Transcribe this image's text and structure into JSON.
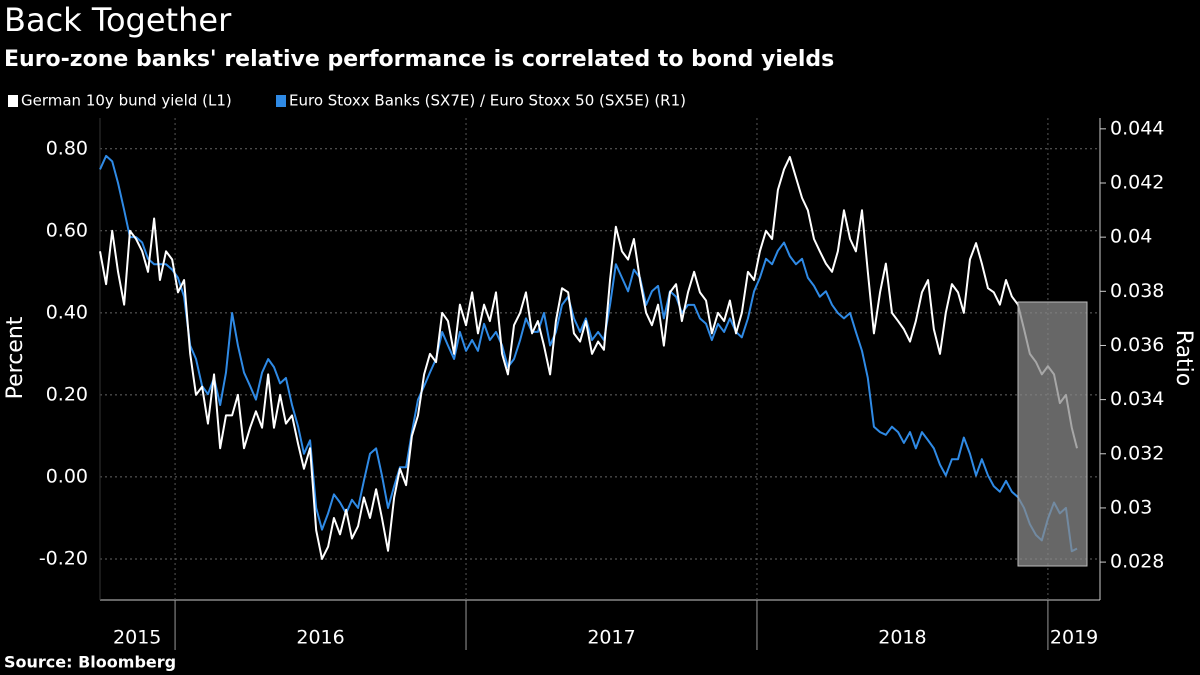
{
  "chart_data": {
    "type": "line",
    "title": "Back Together",
    "subtitle": "Euro-zone banks' relative performance is correlated to bond yields",
    "source": "Source: Bloomberg",
    "ylabel": "Percent",
    "y2label": "Ratio",
    "legend": "top-left",
    "grid": true,
    "xlim": [
      2015.742,
      2019.179
    ],
    "xticks": [
      2016,
      2017,
      2018,
      2019
    ],
    "xlabels": [
      {
        "value": 2015.87,
        "label": "2015"
      },
      {
        "value": 2016.5,
        "label": "2016"
      },
      {
        "value": 2017.5,
        "label": "2017"
      },
      {
        "value": 2018.5,
        "label": "2018"
      },
      {
        "value": 2019.09,
        "label": "2019"
      }
    ],
    "ylim": [
      -0.3,
      0.875
    ],
    "yticks": [
      {
        "value": -0.2,
        "label": "-0.20"
      },
      {
        "value": 0,
        "label": "0.00"
      },
      {
        "value": 0.2,
        "label": "0.20"
      },
      {
        "value": 0.4,
        "label": "0.40"
      },
      {
        "value": 0.6,
        "label": "0.60"
      },
      {
        "value": 0.8,
        "label": "0.80"
      }
    ],
    "y2lim": [
      0.0266,
      0.0444
    ],
    "y2ticks": [
      0.028,
      0.03,
      0.032,
      0.034,
      0.036,
      0.038,
      0.04,
      0.042,
      0.044
    ],
    "x": [
      2015.742,
      2015.763,
      2015.784,
      2015.804,
      2015.825,
      2015.845,
      2015.866,
      2015.887,
      2015.907,
      2015.928,
      2015.948,
      2015.969,
      2015.99,
      2016.01,
      2016.031,
      2016.052,
      2016.072,
      2016.093,
      2016.113,
      2016.134,
      2016.155,
      2016.175,
      2016.196,
      2016.216,
      2016.237,
      2016.258,
      2016.278,
      2016.299,
      2016.32,
      2016.34,
      2016.361,
      2016.381,
      2016.402,
      2016.423,
      2016.443,
      2016.464,
      2016.485,
      2016.505,
      2016.526,
      2016.546,
      2016.567,
      2016.588,
      2016.608,
      2016.629,
      2016.649,
      2016.67,
      2016.691,
      2016.711,
      2016.732,
      2016.753,
      2016.773,
      2016.794,
      2016.814,
      2016.835,
      2016.856,
      2016.876,
      2016.897,
      2016.918,
      2016.938,
      2016.959,
      2016.979,
      2017.0,
      2017.021,
      2017.041,
      2017.062,
      2017.082,
      2017.103,
      2017.124,
      2017.144,
      2017.165,
      2017.186,
      2017.206,
      2017.227,
      2017.247,
      2017.268,
      2017.289,
      2017.309,
      2017.33,
      2017.351,
      2017.371,
      2017.392,
      2017.412,
      2017.433,
      2017.454,
      2017.474,
      2017.495,
      2017.515,
      2017.536,
      2017.557,
      2017.577,
      2017.598,
      2017.619,
      2017.639,
      2017.66,
      2017.68,
      2017.701,
      2017.722,
      2017.742,
      2017.763,
      2017.784,
      2017.804,
      2017.825,
      2017.845,
      2017.866,
      2017.887,
      2017.907,
      2017.928,
      2017.948,
      2017.969,
      2017.99,
      2018.01,
      2018.031,
      2018.052,
      2018.072,
      2018.093,
      2018.113,
      2018.134,
      2018.155,
      2018.175,
      2018.196,
      2018.216,
      2018.237,
      2018.258,
      2018.278,
      2018.299,
      2018.32,
      2018.34,
      2018.361,
      2018.381,
      2018.402,
      2018.423,
      2018.443,
      2018.464,
      2018.485,
      2018.505,
      2018.526,
      2018.546,
      2018.567,
      2018.588,
      2018.608,
      2018.629,
      2018.649,
      2018.67,
      2018.691,
      2018.711,
      2018.732,
      2018.753,
      2018.773,
      2018.794,
      2018.814,
      2018.835,
      2018.856,
      2018.876,
      2018.897,
      2018.918,
      2018.938,
      2018.959,
      2018.979,
      2019.0,
      2019.021,
      2019.041,
      2019.062,
      2019.082,
      2019.1
    ],
    "series": [
      {
        "name": "German 10y bund yield (L1)",
        "color": "#ffffff",
        "axis": "y",
        "values": [
          0.55,
          0.47,
          0.6,
          0.5,
          0.42,
          0.6,
          0.58,
          0.55,
          0.5,
          0.63,
          0.48,
          0.55,
          0.53,
          0.45,
          0.48,
          0.3,
          0.2,
          0.22,
          0.13,
          0.25,
          0.07,
          0.15,
          0.15,
          0.2,
          0.07,
          0.12,
          0.16,
          0.12,
          0.25,
          0.12,
          0.2,
          0.13,
          0.15,
          0.08,
          0.02,
          0.07,
          -0.13,
          -0.2,
          -0.17,
          -0.1,
          -0.14,
          -0.08,
          -0.15,
          -0.12,
          -0.05,
          -0.1,
          -0.03,
          -0.1,
          -0.18,
          -0.05,
          0.02,
          -0.02,
          0.1,
          0.15,
          0.25,
          0.3,
          0.28,
          0.4,
          0.38,
          0.3,
          0.42,
          0.37,
          0.45,
          0.35,
          0.42,
          0.38,
          0.45,
          0.3,
          0.25,
          0.37,
          0.4,
          0.45,
          0.35,
          0.38,
          0.32,
          0.25,
          0.38,
          0.46,
          0.45,
          0.35,
          0.33,
          0.38,
          0.3,
          0.33,
          0.31,
          0.48,
          0.61,
          0.55,
          0.53,
          0.58,
          0.48,
          0.4,
          0.37,
          0.42,
          0.32,
          0.45,
          0.47,
          0.38,
          0.45,
          0.5,
          0.45,
          0.43,
          0.35,
          0.4,
          0.38,
          0.43,
          0.35,
          0.4,
          0.5,
          0.48,
          0.55,
          0.6,
          0.58,
          0.7,
          0.75,
          0.78,
          0.73,
          0.68,
          0.65,
          0.58,
          0.55,
          0.52,
          0.5,
          0.55,
          0.65,
          0.58,
          0.55,
          0.65,
          0.5,
          0.35,
          0.45,
          0.52,
          0.4,
          0.38,
          0.36,
          0.33,
          0.38,
          0.45,
          0.48,
          0.36,
          0.3,
          0.4,
          0.47,
          0.45,
          0.4,
          0.53,
          0.57,
          0.52,
          0.46,
          0.45,
          0.42,
          0.48,
          0.44,
          0.42,
          0.36,
          0.3,
          0.28,
          0.25,
          0.27,
          0.25,
          0.18,
          0.2,
          0.12,
          0.07
        ]
      },
      {
        "name": "Euro Stoxx Banks (SX7E) / Euro Stoxx 50 (SX5E) (R1)",
        "color": "#2f8ae5",
        "axis": "y2",
        "values": [
          0.0425,
          0.043,
          0.0428,
          0.042,
          0.041,
          0.04,
          0.04,
          0.0398,
          0.0392,
          0.039,
          0.039,
          0.039,
          0.0388,
          0.0385,
          0.0378,
          0.036,
          0.0355,
          0.0345,
          0.0342,
          0.0348,
          0.0338,
          0.035,
          0.0372,
          0.036,
          0.035,
          0.0345,
          0.034,
          0.035,
          0.0355,
          0.0352,
          0.0346,
          0.0348,
          0.0338,
          0.033,
          0.032,
          0.0325,
          0.03,
          0.0292,
          0.0298,
          0.0305,
          0.0302,
          0.0298,
          0.0303,
          0.03,
          0.031,
          0.032,
          0.0322,
          0.0312,
          0.03,
          0.0308,
          0.0315,
          0.0315,
          0.0328,
          0.034,
          0.0345,
          0.035,
          0.0355,
          0.0365,
          0.036,
          0.0355,
          0.0365,
          0.0358,
          0.0362,
          0.0358,
          0.0368,
          0.0362,
          0.0365,
          0.036,
          0.0352,
          0.0355,
          0.0362,
          0.037,
          0.0365,
          0.0365,
          0.0372,
          0.036,
          0.0365,
          0.0375,
          0.0378,
          0.037,
          0.0365,
          0.037,
          0.0362,
          0.0365,
          0.0362,
          0.0375,
          0.039,
          0.0385,
          0.038,
          0.0388,
          0.0385,
          0.0375,
          0.038,
          0.0382,
          0.037,
          0.038,
          0.0378,
          0.0372,
          0.0375,
          0.0375,
          0.037,
          0.0368,
          0.0362,
          0.0368,
          0.0365,
          0.037,
          0.0365,
          0.0363,
          0.037,
          0.038,
          0.0385,
          0.0392,
          0.039,
          0.0395,
          0.0398,
          0.0393,
          0.039,
          0.0392,
          0.0385,
          0.0382,
          0.0378,
          0.038,
          0.0375,
          0.0372,
          0.037,
          0.0372,
          0.0365,
          0.0358,
          0.0348,
          0.033,
          0.0328,
          0.0327,
          0.033,
          0.0328,
          0.0324,
          0.0328,
          0.0322,
          0.0328,
          0.0325,
          0.0322,
          0.0316,
          0.0312,
          0.0318,
          0.0318,
          0.0326,
          0.032,
          0.0312,
          0.0318,
          0.0312,
          0.0308,
          0.0306,
          0.031,
          0.0306,
          0.0304,
          0.03,
          0.0294,
          0.029,
          0.0288,
          0.0296,
          0.0302,
          0.0298,
          0.03,
          0.0284,
          0.0285
        ]
      }
    ]
  }
}
